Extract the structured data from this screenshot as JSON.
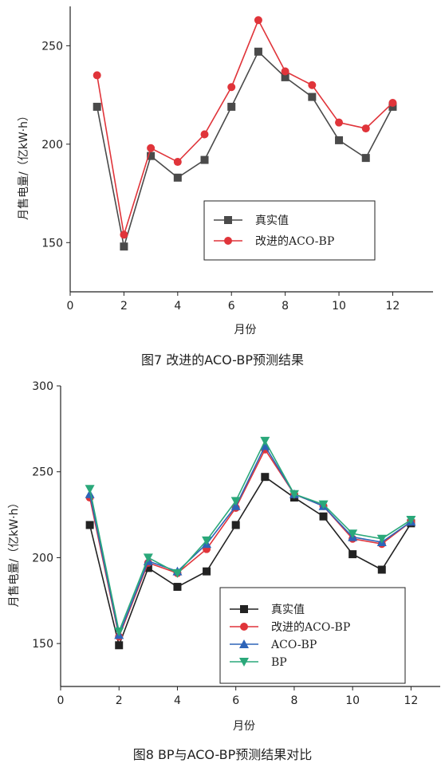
{
  "chart_data": [
    {
      "type": "line",
      "caption": "图7   改进的ACO-BP预测结果",
      "xlabel": "月份",
      "ylabel": "月售电量/（亿kW·h）",
      "xlim": [
        0,
        13.5
      ],
      "ylim": [
        125,
        270
      ],
      "xticks": [
        0,
        2,
        4,
        6,
        8,
        10,
        12
      ],
      "yticks": [
        150,
        200,
        250
      ],
      "legend_position": "lower-right",
      "x": [
        1,
        2,
        3,
        4,
        5,
        6,
        7,
        8,
        9,
        10,
        11,
        12
      ],
      "series": [
        {
          "name": "真实值",
          "color": "#4a4a4a",
          "marker": "square",
          "values": [
            219,
            148,
            194,
            183,
            192,
            219,
            247,
            234,
            224,
            202,
            193,
            219
          ]
        },
        {
          "name": "改进的ACO-BP",
          "color": "#e0343a",
          "marker": "circle",
          "values": [
            235,
            154,
            198,
            191,
            205,
            229,
            263,
            237,
            230,
            211,
            208,
            221
          ]
        }
      ]
    },
    {
      "type": "line",
      "caption": "图8   BP与ACO-BP预测结果对比",
      "xlabel": "月份",
      "ylabel": "月售电量/（亿kW·h）",
      "xlim": [
        0,
        13
      ],
      "ylim": [
        125,
        300
      ],
      "xticks": [
        0,
        2,
        4,
        6,
        8,
        10,
        12
      ],
      "yticks": [
        150,
        200,
        250,
        300
      ],
      "legend_position": "lower-right",
      "x": [
        1,
        2,
        3,
        4,
        5,
        6,
        7,
        8,
        9,
        10,
        11,
        12
      ],
      "series": [
        {
          "name": "真实值",
          "color": "#222222",
          "marker": "square",
          "values": [
            219,
            149,
            194,
            183,
            192,
            219,
            247,
            235,
            224,
            202,
            193,
            220
          ]
        },
        {
          "name": "改进的ACO-BP",
          "color": "#e0343a",
          "marker": "circle",
          "values": [
            235,
            154,
            197,
            191,
            205,
            229,
            263,
            237,
            230,
            211,
            208,
            221
          ]
        },
        {
          "name": "ACO-BP",
          "color": "#2e64b8",
          "marker": "triangle-up",
          "values": [
            237,
            155,
            198,
            192,
            208,
            230,
            265,
            237,
            230,
            212,
            209,
            221
          ]
        },
        {
          "name": "BP",
          "color": "#2aa87a",
          "marker": "triangle-down",
          "values": [
            240,
            157,
            200,
            191,
            210,
            233,
            268,
            237,
            231,
            214,
            211,
            222
          ]
        }
      ]
    }
  ]
}
